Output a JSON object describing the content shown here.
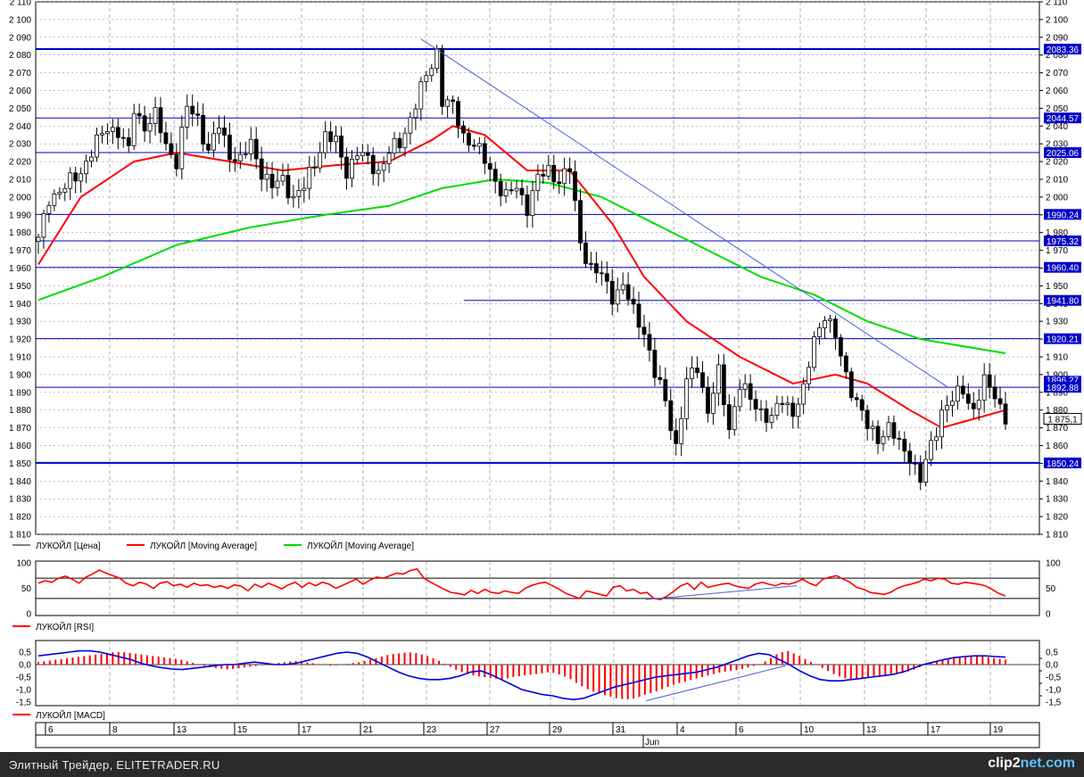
{
  "colors": {
    "price": "#000000",
    "ma_fast": "#ff0000",
    "ma_slow": "#00dd00",
    "level": "#0000cc",
    "trend": "#4a5ed8",
    "rsi": "#ff0000",
    "macd_hist": "#ff0000",
    "macd_line": "#0000dd",
    "grid": "#808080",
    "badge_bg": "#0000cc"
  },
  "legends": {
    "main": [
      {
        "label": "ЛУКОЙЛ [Цена]",
        "color": "#000000"
      },
      {
        "label": "ЛУКОЙЛ [Moving Average]",
        "color": "#ff0000"
      },
      {
        "label": "ЛУКОЙЛ [Moving Average]",
        "color": "#00dd00"
      }
    ],
    "rsi": "ЛУКОЙЛ [RSI]",
    "macd": "ЛУКОЙЛ [MACD]"
  },
  "footer": {
    "left": "Элитный Трейдер, ELITETRADER.RU",
    "brand_pre": "clip2",
    "brand_post": "net.com"
  },
  "chart_data": [
    {
      "type": "candlestick",
      "title": "",
      "ylim": [
        1810,
        2110
      ],
      "yticks": [
        "1 810",
        "1 820",
        "1 830",
        "1 840",
        "1 850",
        "1 860",
        "1 870",
        "1 880",
        "1 890",
        "1 900",
        "1 910",
        "1 920",
        "1 930",
        "1 940",
        "1 950",
        "1 960",
        "1 970",
        "1 980",
        "1 990",
        "2 000",
        "2 010",
        "2 020",
        "2 030",
        "2 040",
        "2 050",
        "2 060",
        "2 070",
        "2 080",
        "2 090",
        "2 100",
        "2 110"
      ],
      "x_labels": [
        "6",
        "8",
        "13",
        "15",
        "17",
        "21",
        "23",
        "27",
        "29",
        "31",
        "4",
        "6",
        "10",
        "13",
        "17",
        "19"
      ],
      "x_month_label": "Jun",
      "grid": true,
      "current_price_label": "1 875,1",
      "current_price": 1875.1,
      "levels": [
        2083.36,
        2044.57,
        2025.06,
        1990.24,
        1975.32,
        1960.4,
        1941.8,
        1920.21,
        1892.88,
        1850.24
      ],
      "level_labels": [
        "2083.36",
        "2044.57",
        "2025.06",
        "1990.24",
        "1975.32",
        "1960.40",
        "1941.80",
        "1920.21",
        "1892.88",
        "1850.24"
      ],
      "partial_badge": "1896.27",
      "trendline": [
        [
          0.0,
          2089
        ],
        [
          0.52,
          1893
        ]
      ],
      "price_anchors": [
        [
          0,
          1975
        ],
        [
          2,
          2000
        ],
        [
          5,
          2005
        ],
        [
          8,
          2015
        ],
        [
          11,
          2030
        ],
        [
          13,
          2040
        ],
        [
          15,
          2037
        ],
        [
          17,
          2025
        ],
        [
          18,
          2050
        ],
        [
          20,
          2040
        ],
        [
          22,
          2045
        ],
        [
          24,
          2030
        ],
        [
          26,
          2020
        ],
        [
          28,
          2050
        ],
        [
          30,
          2045
        ],
        [
          32,
          2025
        ],
        [
          34,
          2040
        ],
        [
          36,
          2025
        ],
        [
          38,
          2020
        ],
        [
          40,
          2030
        ],
        [
          42,
          2015
        ],
        [
          44,
          2005
        ],
        [
          46,
          2010
        ],
        [
          48,
          2000
        ],
        [
          50,
          2005
        ],
        [
          52,
          2020
        ],
        [
          54,
          2035
        ],
        [
          56,
          2030
        ],
        [
          58,
          2015
        ],
        [
          60,
          2025
        ],
        [
          62,
          2020
        ],
        [
          64,
          2015
        ],
        [
          66,
          2025
        ],
        [
          68,
          2030
        ],
        [
          70,
          2045
        ],
        [
          72,
          2060
        ],
        [
          74,
          2075
        ],
        [
          75,
          2083
        ],
        [
          76,
          2055
        ],
        [
          78,
          2050
        ],
        [
          80,
          2035
        ],
        [
          82,
          2030
        ],
        [
          84,
          2020
        ],
        [
          86,
          2010
        ],
        [
          88,
          2000
        ],
        [
          90,
          2005
        ],
        [
          92,
          1995
        ],
        [
          94,
          2010
        ],
        [
          96,
          2015
        ],
        [
          98,
          2010
        ],
        [
          100,
          2015
        ],
        [
          102,
          1975
        ],
        [
          104,
          1960
        ],
        [
          106,
          1955
        ],
        [
          108,
          1945
        ],
        [
          110,
          1950
        ],
        [
          112,
          1935
        ],
        [
          114,
          1925
        ],
        [
          116,
          1900
        ],
        [
          118,
          1885
        ],
        [
          120,
          1860
        ],
        [
          122,
          1895
        ],
        [
          124,
          1905
        ],
        [
          126,
          1880
        ],
        [
          128,
          1900
        ],
        [
          130,
          1870
        ],
        [
          132,
          1895
        ],
        [
          134,
          1885
        ],
        [
          136,
          1880
        ],
        [
          138,
          1875
        ],
        [
          140,
          1885
        ],
        [
          142,
          1880
        ],
        [
          144,
          1890
        ],
        [
          146,
          1920
        ],
        [
          148,
          1935
        ],
        [
          150,
          1920
        ],
        [
          152,
          1900
        ],
        [
          154,
          1885
        ],
        [
          156,
          1870
        ],
        [
          158,
          1865
        ],
        [
          160,
          1870
        ],
        [
          162,
          1860
        ],
        [
          164,
          1855
        ],
        [
          166,
          1840
        ],
        [
          168,
          1860
        ],
        [
          170,
          1880
        ],
        [
          172,
          1885
        ],
        [
          174,
          1892
        ],
        [
          176,
          1880
        ],
        [
          178,
          1895
        ],
        [
          180,
          1890
        ],
        [
          182,
          1875
        ]
      ],
      "ma_fast": [
        [
          0,
          1962
        ],
        [
          8,
          2000
        ],
        [
          18,
          2020
        ],
        [
          26,
          2025
        ],
        [
          36,
          2020
        ],
        [
          46,
          2015
        ],
        [
          56,
          2018
        ],
        [
          66,
          2020
        ],
        [
          74,
          2032
        ],
        [
          78,
          2040
        ],
        [
          84,
          2035
        ],
        [
          92,
          2015
        ],
        [
          100,
          2015
        ],
        [
          108,
          1985
        ],
        [
          114,
          1955
        ],
        [
          122,
          1930
        ],
        [
          132,
          1910
        ],
        [
          142,
          1895
        ],
        [
          150,
          1900
        ],
        [
          156,
          1895
        ],
        [
          164,
          1880
        ],
        [
          170,
          1870
        ],
        [
          176,
          1875
        ],
        [
          182,
          1880
        ]
      ],
      "ma_slow": [
        [
          0,
          1942
        ],
        [
          12,
          1955
        ],
        [
          26,
          1973
        ],
        [
          40,
          1983
        ],
        [
          54,
          1990
        ],
        [
          66,
          1995
        ],
        [
          76,
          2005
        ],
        [
          86,
          2010
        ],
        [
          96,
          2008
        ],
        [
          106,
          2000
        ],
        [
          116,
          1985
        ],
        [
          126,
          1970
        ],
        [
          136,
          1955
        ],
        [
          146,
          1945
        ],
        [
          156,
          1930
        ],
        [
          166,
          1920
        ],
        [
          176,
          1915
        ],
        [
          182,
          1912
        ]
      ]
    },
    {
      "type": "line",
      "name": "ЛУКОЙЛ [RSI]",
      "ylim": [
        0,
        100
      ],
      "yticks": [
        "0",
        "50",
        "100"
      ],
      "levels": [
        30,
        70
      ],
      "values": [
        60,
        65,
        62,
        70,
        74,
        68,
        60,
        72,
        78,
        86,
        80,
        75,
        70,
        60,
        55,
        62,
        58,
        50,
        60,
        63,
        55,
        58,
        52,
        60,
        55,
        57,
        52,
        55,
        50,
        57,
        54,
        45,
        58,
        52,
        60,
        55,
        49,
        57,
        62,
        52,
        61,
        55,
        62,
        58,
        50,
        56,
        62,
        68,
        58,
        66,
        72,
        70,
        75,
        80,
        78,
        85,
        88,
        70,
        62,
        55,
        48,
        42,
        40,
        37,
        46,
        40,
        48,
        42,
        40,
        45,
        42,
        40,
        50,
        56,
        60,
        62,
        55,
        48,
        40,
        35,
        30,
        45,
        42,
        38,
        35,
        52,
        55,
        45,
        48,
        40,
        42,
        30,
        28,
        35,
        45,
        55,
        60,
        48,
        62,
        52,
        55,
        58,
        60,
        55,
        52,
        50,
        58,
        62,
        58,
        55,
        60,
        58,
        62,
        68,
        60,
        55,
        68,
        72,
        75,
        68,
        62,
        52,
        48,
        42,
        40,
        38,
        42,
        50,
        55,
        58,
        62,
        68,
        65,
        70,
        68,
        60,
        58,
        62,
        60,
        58,
        55,
        48,
        40,
        35
      ],
      "trendline": [
        [
          0.53,
          28
        ],
        [
          0.69,
          55
        ]
      ]
    },
    {
      "type": "bar",
      "name": "ЛУКОЙЛ [MACD]",
      "ylim": [
        -1.5,
        0.5
      ],
      "yticks": [
        "0,5",
        "0,0",
        "-0,5",
        "-1,0",
        "-1,5"
      ],
      "hist": [
        0.1,
        0.15,
        0.2,
        0.25,
        0.3,
        0.35,
        0.4,
        0.45,
        0.5,
        0.5,
        0.45,
        0.4,
        0.35,
        0.3,
        0.25,
        0.2,
        0.1,
        0.0,
        -0.1,
        -0.15,
        -0.2,
        -0.15,
        -0.1,
        -0.05,
        0.0,
        0.05,
        0.1,
        0.15,
        0.1,
        0.05,
        0.0,
        -0.05,
        0.0,
        0.05,
        0.1,
        0.2,
        0.3,
        0.4,
        0.45,
        0.5,
        0.45,
        0.35,
        0.2,
        0.0,
        -0.2,
        -0.35,
        -0.45,
        -0.5,
        -0.55,
        -0.6,
        -0.5,
        -0.45,
        -0.4,
        -0.35,
        -0.3,
        -0.4,
        -0.55,
        -0.8,
        -1.0,
        -1.15,
        -1.25,
        -1.35,
        -1.4,
        -1.35,
        -1.2,
        -1.1,
        -0.95,
        -0.8,
        -0.7,
        -0.6,
        -0.5,
        -0.4,
        -0.3,
        -0.25,
        -0.2,
        -0.1,
        0.0,
        0.2,
        0.45,
        0.55,
        0.4,
        0.2,
        0.0,
        -0.2,
        -0.4,
        -0.55,
        -0.6,
        -0.55,
        -0.5,
        -0.45,
        -0.4,
        -0.35,
        -0.25,
        -0.1,
        0.05,
        0.15,
        0.25,
        0.3,
        0.35,
        0.35,
        0.3,
        0.25,
        0.2
      ],
      "macd_line": [
        0.35,
        0.4,
        0.45,
        0.5,
        0.55,
        0.55,
        0.5,
        0.4,
        0.3,
        0.2,
        0.05,
        -0.05,
        -0.12,
        -0.18,
        -0.2,
        -0.15,
        -0.1,
        -0.05,
        0.0,
        0.0,
        0.05,
        0.1,
        0.05,
        0.0,
        0.0,
        0.05,
        0.15,
        0.25,
        0.35,
        0.45,
        0.5,
        0.45,
        0.3,
        0.1,
        -0.1,
        -0.3,
        -0.45,
        -0.55,
        -0.6,
        -0.6,
        -0.55,
        -0.45,
        -0.3,
        -0.25,
        -0.4,
        -0.6,
        -0.8,
        -1.0,
        -1.1,
        -1.2,
        -1.25,
        -1.35,
        -1.4,
        -1.35,
        -1.2,
        -1.05,
        -0.9,
        -0.8,
        -0.7,
        -0.6,
        -0.5,
        -0.45,
        -0.4,
        -0.35,
        -0.3,
        -0.2,
        -0.1,
        0.05,
        0.2,
        0.35,
        0.45,
        0.4,
        0.2,
        0.0,
        -0.25,
        -0.45,
        -0.6,
        -0.65,
        -0.65,
        -0.6,
        -0.55,
        -0.5,
        -0.45,
        -0.4,
        -0.3,
        -0.15,
        0.0,
        0.1,
        0.2,
        0.28,
        0.32,
        0.35,
        0.35,
        0.32,
        0.3
      ]
    }
  ]
}
